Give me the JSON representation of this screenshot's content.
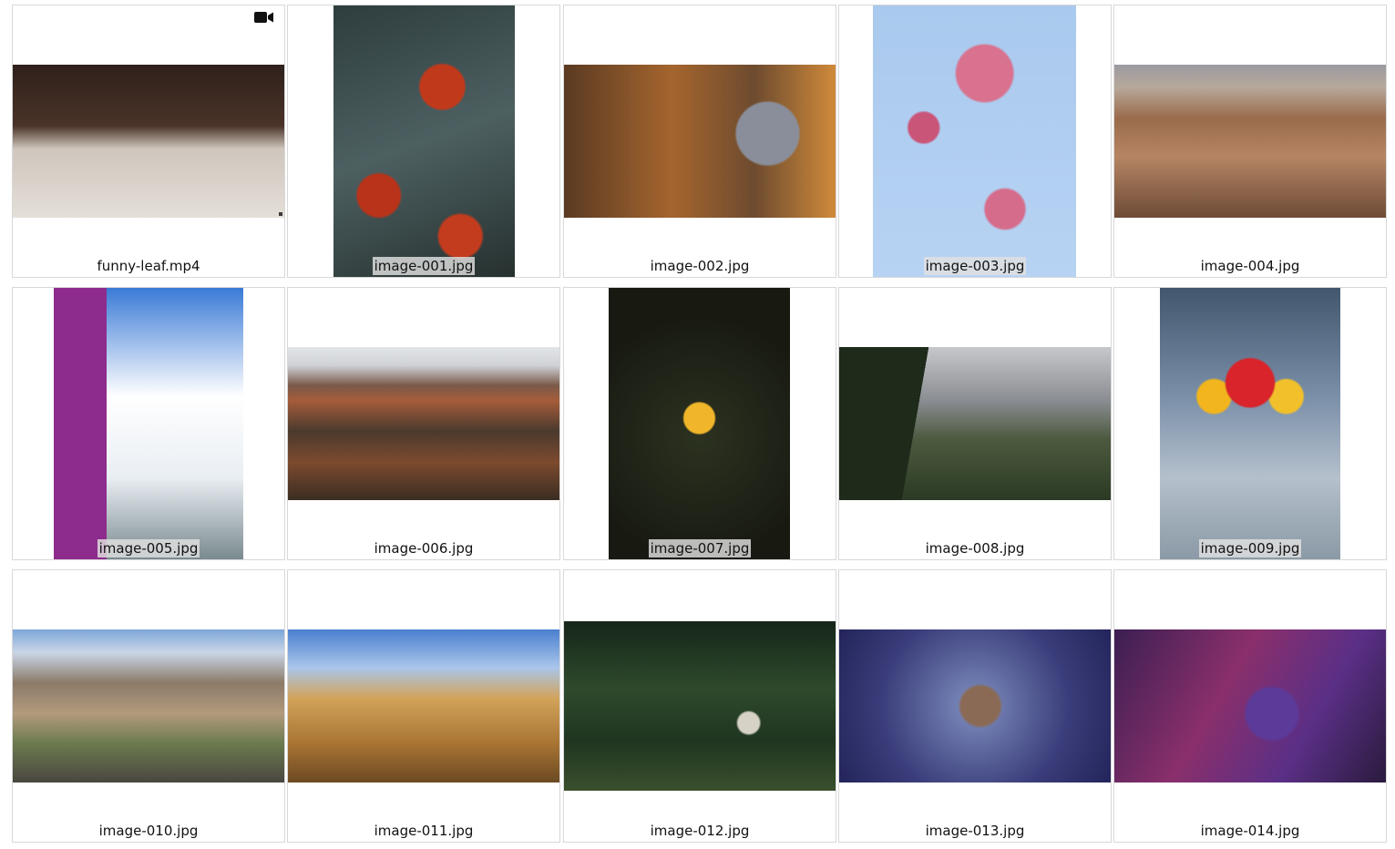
{
  "gallery": {
    "items": [
      {
        "filename": "funny-leaf.mp4",
        "type": "video",
        "icon": "video-camera-icon",
        "bg": "linear-gradient(180deg,#2f201b 0%,#4a3328 40%,#cfc6bd 55%,#e4dfd8 100%)",
        "label_on_image": false
      },
      {
        "filename": "image-001.jpg",
        "type": "image",
        "bg": "radial-gradient(circle at 60% 30%,#c0391b 0 10%,transparent 11%),radial-gradient(circle at 25% 70%,#b8331a 0 9%,transparent 10%),radial-gradient(circle at 70% 85%,#c23c1d 0 8%,transparent 9%),linear-gradient(160deg,#2e3d3e,#4d6061 50%,#26302f)",
        "label_on_image": true
      },
      {
        "filename": "image-002.jpg",
        "type": "image",
        "bg": "radial-gradient(circle at 75% 45%,#8a8e9a 0 14%,transparent 15%),linear-gradient(90deg,#5a3a22,#a5652e 40%,#6d4b2f 70%,#d08a3a)",
        "label_on_image": false
      },
      {
        "filename": "image-003.jpg",
        "type": "image",
        "bg": "radial-gradient(circle at 55% 25%,#d9728f 0 12%,transparent 13%),radial-gradient(circle at 25% 45%,#c95579 0 7%,transparent 8%),radial-gradient(circle at 65% 75%,#d66c8b 0 8%,transparent 9%),linear-gradient(180deg,#a9c9ee,#b7d3f3)",
        "label_on_image": true
      },
      {
        "filename": "image-004.jpg",
        "type": "image",
        "bg": "linear-gradient(180deg,#9b9aa3 0%,#b7a89a 15%,#9a6b4b 35%,#b58563 60%,#6e4b36 100%)",
        "label_on_image": false
      },
      {
        "filename": "image-005.jpg",
        "type": "image",
        "bg": "linear-gradient(90deg,#8e2c8d 0 28%,transparent 28%),linear-gradient(180deg,#3a7ad6 0%,#ffffff 40%,#e9eef3 70%,#7a8a8f 100%)",
        "label_on_image": true
      },
      {
        "filename": "image-006.jpg",
        "type": "image",
        "bg": "linear-gradient(180deg,#e3e5e8 0%,#cfd2d6 12%,#7a5a4a 25%,#a65c3a 35%,#4a3a2e 55%,#7d4a2e 75%,#3a2d22 100%)",
        "label_on_image": false
      },
      {
        "filename": "image-007.jpg",
        "type": "image",
        "bg": "radial-gradient(circle at 50% 48%,#f0b52a 0 9%,transparent 10%),radial-gradient(circle at 50% 55%,#2c3220,#181a12 70%)",
        "label_on_image": true
      },
      {
        "filename": "image-008.jpg",
        "type": "image",
        "bg": "linear-gradient(100deg,#1e2a1a 0 30%,transparent 30%),linear-gradient(180deg,#c6c8cc 0%,#8a8d91 35%,#4d5a3f 60%,#2b3a24 100%)",
        "label_on_image": false
      },
      {
        "filename": "image-009.jpg",
        "type": "image",
        "bg": "radial-gradient(circle at 50% 35%,#d8242a 0 12%,transparent 13%),radial-gradient(circle at 30% 40%,#f2b51d 0 8%,transparent 9%),radial-gradient(circle at 70% 40%,#f1c02a 0 8%,transparent 9%),linear-gradient(180deg,#42566d,#7a8fa8 40%,#b4c0cc 70%,#8b9aa6)",
        "label_on_image": true
      },
      {
        "filename": "image-010.jpg",
        "type": "image",
        "bg": "linear-gradient(180deg,#7ea6d8 0%,#c9d6e8 15%,#8c7a68 35%,#b29a7c 55%,#6a7a4e 75%,#4a4640 100%)",
        "label_on_image": false
      },
      {
        "filename": "image-011.jpg",
        "type": "image",
        "bg": "linear-gradient(180deg,#4a7fcf 0%,#a9c6ea 25%,#d2a35a 45%,#a87433 75%,#6b4a22 100%)",
        "label_on_image": false
      },
      {
        "filename": "image-012.jpg",
        "type": "image",
        "bg": "radial-gradient(circle at 68% 60%,#d7d2c6 0 5%,transparent 6%),linear-gradient(180deg,#16261a,#2e4a2c 40%,#1f3520 70%,#3a4f2c)",
        "label_on_image": false
      },
      {
        "filename": "image-013.jpg",
        "type": "image",
        "bg": "radial-gradient(circle at 52% 50%,#8b6a55 0 12%,transparent 14%),radial-gradient(circle at 50% 50%,#7f8fc0,#3a3d7a 60%,#23245a)",
        "label_on_image": false
      },
      {
        "filename": "image-014.jpg",
        "type": "image",
        "bg": "radial-gradient(circle at 58% 55%,#5b3a9a 0 14%,transparent 16%),linear-gradient(120deg,#3b1f52,#8a2f6b 40%,#5a2f86 70%,#2a1b3d)",
        "label_on_image": false
      }
    ]
  }
}
